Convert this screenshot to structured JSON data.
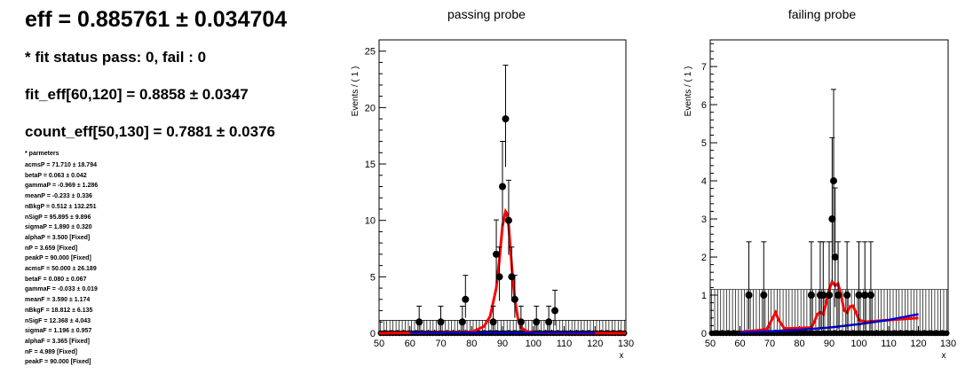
{
  "summary": {
    "eff": "eff = 0.885761 ± 0.034704",
    "fit_status": "* fit status pass: 0, fail : 0",
    "fit_eff": "fit_eff[60,120] = 0.8858 ± 0.0347",
    "count_eff": "count_eff[50,130] = 0.7881 ± 0.0376",
    "params_title": "* parmeters",
    "params": [
      "acmsP = 71.710 ± 18.794",
      "betaP = 0.063 ± 0.042",
      "gammaP = -0.969 ± 1.286",
      "meanP = -0.233 ± 0.336",
      "nBkgP = 0.512 ± 132.251",
      "nSigP = 95.895 ± 9.896",
      "sigmaP = 1.890 ± 0.320",
      "alphaP = 3.500 [Fixed]",
      "nP = 3.659 [Fixed]",
      "peakP = 90.000 [Fixed]",
      "acmsF = 50.000 ± 26.189",
      "betaF = 0.080 ± 0.067",
      "gammaF = -0.033 ± 0.019",
      "meanF = 3.590 ± 1.174",
      "nBkgF = 18.812 ± 6.135",
      "nSigF = 12.368 ± 4.043",
      "sigmaF = 1.196 ± 0.957",
      "alphaF = 3.365 [Fixed]",
      "nF = 4.989 [Fixed]",
      "peakF = 90.000 [Fixed]"
    ]
  },
  "chart_data": [
    {
      "type": "scatter",
      "title": "passing probe",
      "xlabel": "x",
      "ylabel": "Events / ( 1 )",
      "xlim": [
        50,
        130
      ],
      "ylim": [
        0,
        26
      ],
      "xticks": [
        50,
        60,
        70,
        80,
        90,
        100,
        110,
        120,
        130
      ],
      "yticks": [
        0,
        5,
        10,
        15,
        20,
        25
      ],
      "points": [
        {
          "x": 63,
          "y": 1
        },
        {
          "x": 70,
          "y": 1
        },
        {
          "x": 77,
          "y": 1
        },
        {
          "x": 78,
          "y": 3
        },
        {
          "x": 87,
          "y": 1
        },
        {
          "x": 88,
          "y": 7
        },
        {
          "x": 89,
          "y": 5
        },
        {
          "x": 90,
          "y": 13
        },
        {
          "x": 91,
          "y": 19
        },
        {
          "x": 92,
          "y": 10
        },
        {
          "x": 93,
          "y": 5
        },
        {
          "x": 94,
          "y": 3
        },
        {
          "x": 96,
          "y": 1
        },
        {
          "x": 101,
          "y": 1
        },
        {
          "x": 105,
          "y": 1
        },
        {
          "x": 107,
          "y": 2
        }
      ],
      "error_up": {
        "0": 1.14,
        "1": 1.84,
        "2": 2.3,
        "3": 2.92,
        "5": 3.6,
        "7": 4.5,
        "10": 3.2
      },
      "grid": false,
      "legend": "none",
      "series": [
        {
          "type": "fit-total",
          "color": "#ff0000",
          "x": [
            50,
            80,
            84,
            86,
            88,
            89,
            90,
            91,
            91.5,
            92,
            93,
            94,
            95,
            96,
            98,
            100,
            130
          ],
          "y": [
            0,
            0.1,
            0.6,
            1.5,
            4.0,
            6.5,
            9.5,
            10.8,
            10.6,
            9.5,
            6.0,
            3.0,
            1.3,
            0.5,
            0.15,
            0.05,
            0
          ]
        },
        {
          "type": "fit-background",
          "color": "#0000cc",
          "x": [
            60,
            120
          ],
          "y": [
            0.05,
            0.05
          ]
        }
      ]
    },
    {
      "type": "scatter",
      "title": "failing probe",
      "xlabel": "x",
      "ylabel": "Events / ( 1 )",
      "xlim": [
        50,
        130
      ],
      "ylim": [
        0,
        7.7
      ],
      "xticks": [
        50,
        60,
        70,
        80,
        90,
        100,
        110,
        120,
        130
      ],
      "yticks": [
        0,
        1,
        2,
        3,
        4,
        5,
        6,
        7
      ],
      "points": [
        {
          "x": 63,
          "y": 1
        },
        {
          "x": 68,
          "y": 1
        },
        {
          "x": 84,
          "y": 1
        },
        {
          "x": 87,
          "y": 1
        },
        {
          "x": 88,
          "y": 1
        },
        {
          "x": 90,
          "y": 1
        },
        {
          "x": 91,
          "y": 3
        },
        {
          "x": 91.5,
          "y": 4
        },
        {
          "x": 92,
          "y": 2
        },
        {
          "x": 93,
          "y": 1
        },
        {
          "x": 96,
          "y": 1
        },
        {
          "x": 100,
          "y": 1
        },
        {
          "x": 102,
          "y": 1
        },
        {
          "x": 104,
          "y": 1
        }
      ],
      "grid": false,
      "legend": "none",
      "series": [
        {
          "type": "fit-total",
          "color": "#ff0000",
          "x": [
            60,
            69,
            71,
            72,
            73,
            75,
            84,
            85,
            86,
            87,
            88,
            89,
            90,
            91,
            92,
            93,
            94,
            95,
            96,
            97,
            98,
            99,
            100,
            102,
            120
          ],
          "y": [
            0.03,
            0.1,
            0.4,
            0.55,
            0.35,
            0.12,
            0.15,
            0.3,
            0.5,
            0.55,
            0.5,
            0.8,
            1.15,
            1.35,
            1.25,
            1.3,
            1.0,
            0.6,
            0.55,
            0.7,
            0.72,
            0.55,
            0.35,
            0.3,
            0.4
          ]
        },
        {
          "type": "fit-background",
          "color": "#0000cc",
          "x": [
            60,
            70,
            80,
            90,
            100,
            110,
            120
          ],
          "y": [
            0.02,
            0.05,
            0.09,
            0.15,
            0.24,
            0.35,
            0.5
          ]
        }
      ]
    }
  ]
}
